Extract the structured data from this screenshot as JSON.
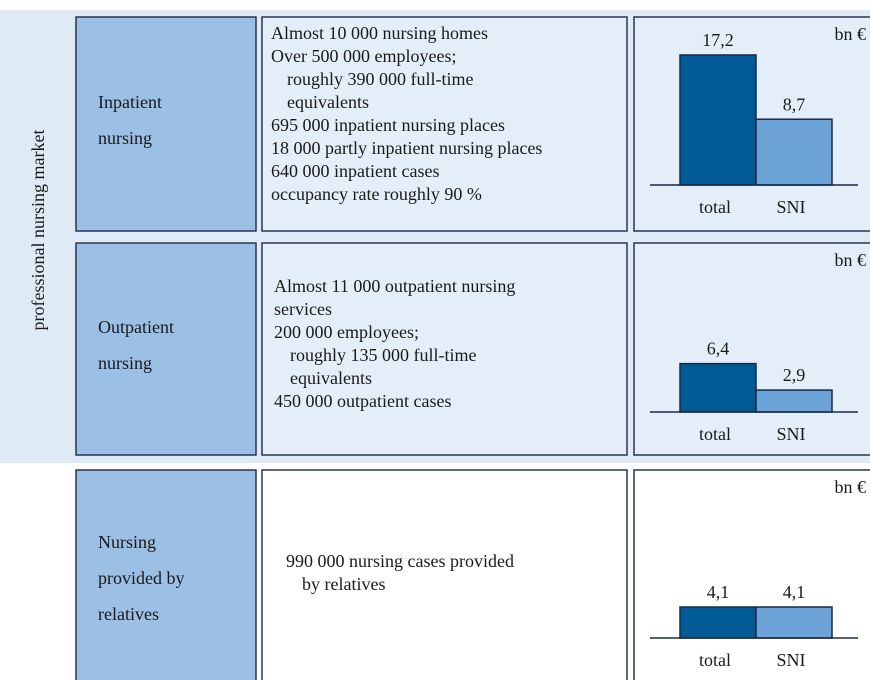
{
  "side_label": "professional nursing market",
  "rows": [
    {
      "label": [
        "Inpatient",
        "nursing"
      ],
      "text": [
        "Almost 10 000 nursing homes",
        "Over 500 000 employees;",
        "roughly  390 000 full-time",
        "equivalents",
        "695 000 inpatient nursing places",
        "18 000 partly inpatient nursing places",
        "640 000 inpatient cases",
        "occupancy rate roughly 90 %"
      ]
    },
    {
      "label": [
        "Outpatient",
        "nursing"
      ],
      "text": [
        "Almost 11 000 outpatient nursing",
        "services",
        "200 000 employees;",
        "roughly 135 000 full-time",
        "equivalents",
        "450 000 outpatient cases"
      ]
    },
    {
      "label": [
        "Nursing",
        "provided by",
        "relatives"
      ],
      "text": [
        "990 000 nursing cases provided",
        "by relatives"
      ]
    }
  ],
  "chart_data": [
    {
      "type": "bar",
      "unit": "bn €",
      "categories": [
        "total",
        "SNI"
      ],
      "values": [
        17.2,
        8.7
      ],
      "value_labels": [
        "17,2",
        "8,7"
      ],
      "colors": [
        "#005a96",
        "#6ba3d8"
      ]
    },
    {
      "type": "bar",
      "unit": "bn €",
      "categories": [
        "total",
        "SNI"
      ],
      "values": [
        6.4,
        2.9
      ],
      "value_labels": [
        "6,4",
        "2,9"
      ],
      "colors": [
        "#005a96",
        "#6ba3d8"
      ]
    },
    {
      "type": "bar",
      "unit": "bn €",
      "categories": [
        "total",
        "SNI"
      ],
      "values": [
        4.1,
        4.1
      ],
      "value_labels": [
        "4,1",
        "4,1"
      ],
      "colors": [
        "#005a96",
        "#6ba3d8"
      ]
    }
  ]
}
